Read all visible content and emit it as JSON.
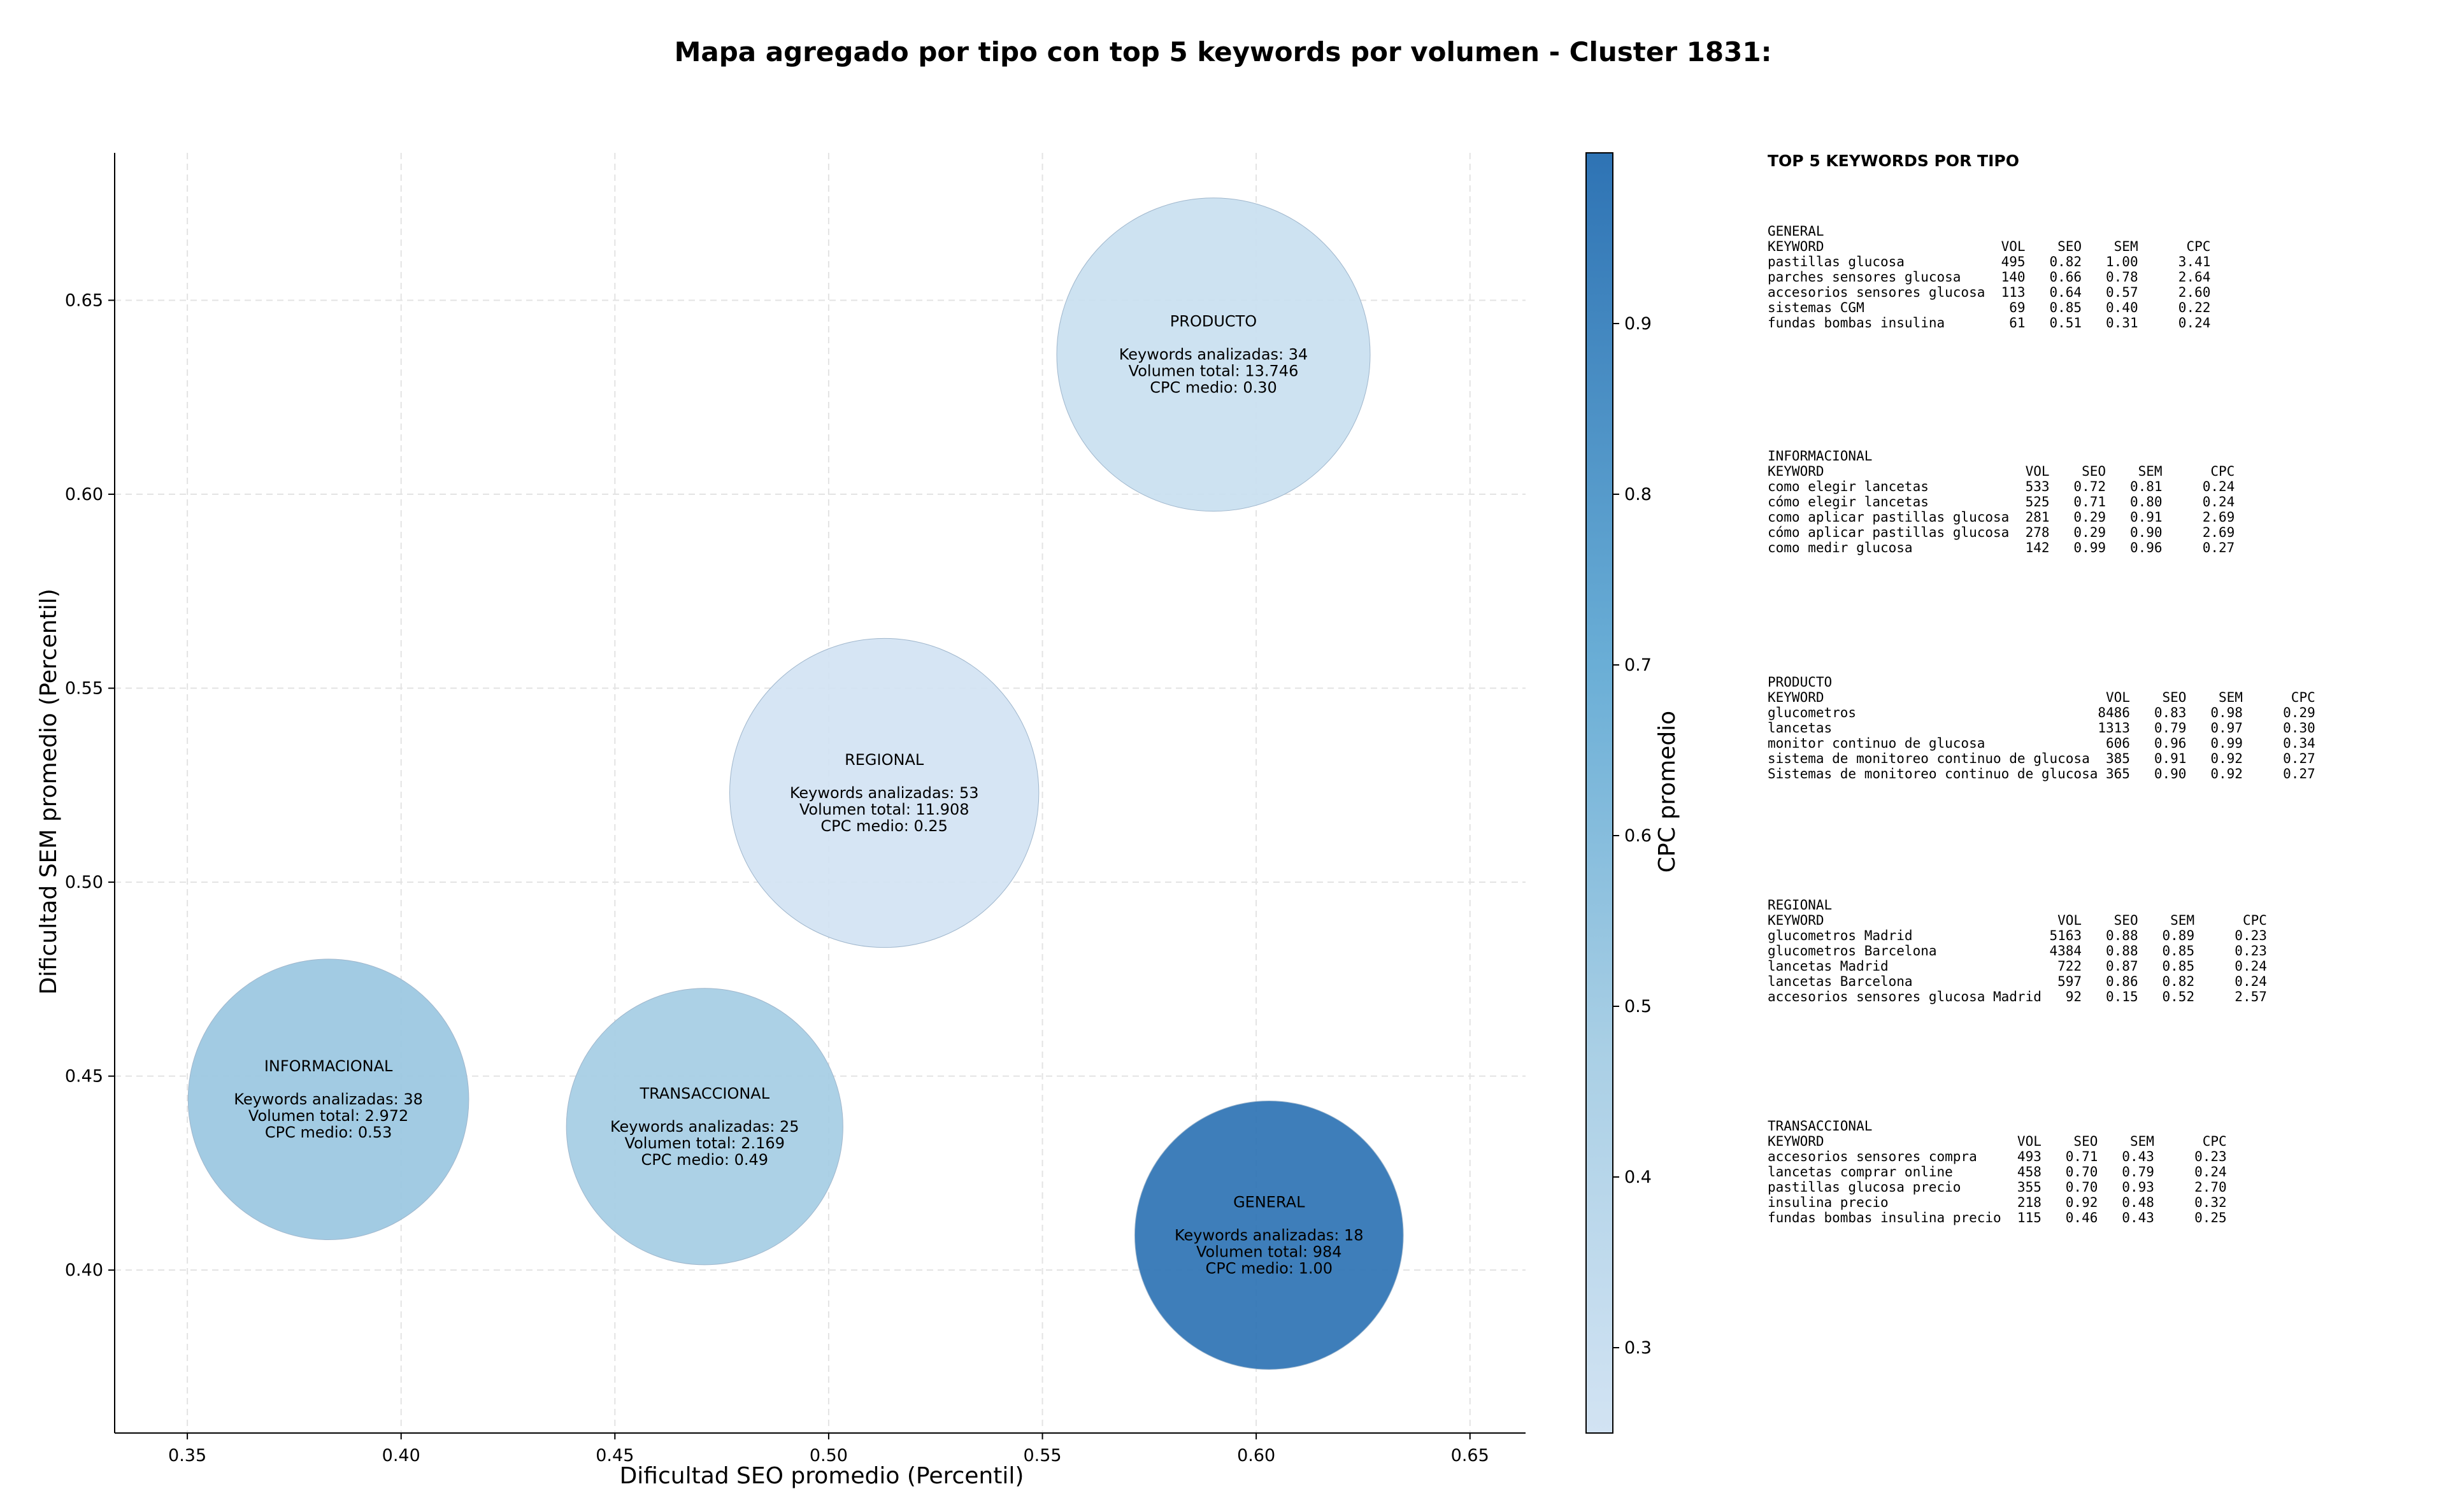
{
  "chart_data": {
    "type": "scatter",
    "title": "Mapa agregado por tipo con top 5 keywords por volumen - Cluster 1831:",
    "xlabel": "Dificultad SEO promedio (Percentil)",
    "ylabel": "Dificultad SEM promedio (Percentil)",
    "xlim": [
      0.333,
      0.663
    ],
    "ylim": [
      0.358,
      0.688
    ],
    "xticks": [
      0.35,
      0.4,
      0.45,
      0.5,
      0.55,
      0.6,
      0.65
    ],
    "yticks": [
      0.4,
      0.45,
      0.5,
      0.55,
      0.6,
      0.65
    ],
    "grid": true,
    "colorbar": {
      "label": "CPC promedio",
      "min": 0.25,
      "max": 1.0,
      "ticks": [
        0.3,
        0.4,
        0.5,
        0.6,
        0.7,
        0.8,
        0.9
      ]
    },
    "points": [
      {
        "label": "PRODUCTO",
        "x": 0.59,
        "y": 0.636,
        "keywords": 34,
        "volume": 13746,
        "cpc": 0.3,
        "lines": [
          "PRODUCTO",
          "Keywords analizadas: 34",
          "Volumen total: 13.746",
          "CPC medio: 0.30"
        ]
      },
      {
        "label": "REGIONAL",
        "x": 0.513,
        "y": 0.523,
        "keywords": 53,
        "volume": 11908,
        "cpc": 0.25,
        "lines": [
          "REGIONAL",
          "Keywords analizadas: 53",
          "Volumen total: 11.908",
          "CPC medio: 0.25"
        ]
      },
      {
        "label": "INFORMACIONAL",
        "x": 0.383,
        "y": 0.444,
        "keywords": 38,
        "volume": 2972,
        "cpc": 0.53,
        "lines": [
          "INFORMACIONAL",
          "Keywords analizadas: 38",
          "Volumen total: 2.972",
          "CPC medio: 0.53"
        ]
      },
      {
        "label": "TRANSACCIONAL",
        "x": 0.471,
        "y": 0.437,
        "keywords": 25,
        "volume": 2169,
        "cpc": 0.49,
        "lines": [
          "TRANSACCIONAL",
          "Keywords analizadas: 25",
          "Volumen total: 2.169",
          "CPC medio: 0.49"
        ]
      },
      {
        "label": "GENERAL",
        "x": 0.603,
        "y": 0.409,
        "keywords": 18,
        "volume": 984,
        "cpc": 1.0,
        "lines": [
          "GENERAL",
          "Keywords analizadas: 18",
          "Volumen total: 984",
          "CPC medio: 1.00"
        ]
      }
    ],
    "table_title": "TOP 5 KEYWORDS POR TIPO",
    "tables": [
      {
        "lines": [
          "GENERAL",
          "KEYWORD                      VOL    SEO    SEM      CPC",
          "pastillas glucosa            495   0.82   1.00     3.41",
          "parches sensores glucosa     140   0.66   0.78     2.64",
          "accesorios sensores glucosa  113   0.64   0.57     2.60",
          "sistemas CGM                  69   0.85   0.40     0.22",
          "fundas bombas insulina        61   0.51   0.31     0.24"
        ]
      },
      {
        "lines": [
          "INFORMACIONAL",
          "KEYWORD                         VOL    SEO    SEM      CPC",
          "como elegir lancetas            533   0.72   0.81     0.24",
          "cómo elegir lancetas            525   0.71   0.80     0.24",
          "como aplicar pastillas glucosa  281   0.29   0.91     2.69",
          "cómo aplicar pastillas glucosa  278   0.29   0.90     2.69",
          "como medir glucosa              142   0.99   0.96     0.27"
        ]
      },
      {
        "lines": [
          "PRODUCTO",
          "KEYWORD                                   VOL    SEO    SEM      CPC",
          "glucometros                              8486   0.83   0.98     0.29",
          "lancetas                                 1313   0.79   0.97     0.30",
          "monitor continuo de glucosa               606   0.96   0.99     0.34",
          "sistema de monitoreo continuo de glucosa  385   0.91   0.92     0.27",
          "Sistemas de monitoreo continuo de glucosa 365   0.90   0.92     0.27"
        ]
      },
      {
        "lines": [
          "REGIONAL",
          "KEYWORD                             VOL    SEO    SEM      CPC",
          "glucometros Madrid                 5163   0.88   0.89     0.23",
          "glucometros Barcelona              4384   0.88   0.85     0.23",
          "lancetas Madrid                     722   0.87   0.85     0.24",
          "lancetas Barcelona                  597   0.86   0.82     0.24",
          "accesorios sensores glucosa Madrid   92   0.15   0.52     2.57"
        ]
      },
      {
        "lines": [
          "TRANSACCIONAL",
          "KEYWORD                        VOL    SEO    SEM      CPC",
          "accesorios sensores compra     493   0.71   0.43     0.23",
          "lancetas comprar online        458   0.70   0.79     0.24",
          "pastillas glucosa precio       355   0.70   0.93     2.70",
          "insulina precio                218   0.92   0.48     0.32",
          "fundas bombas insulina precio  115   0.46   0.43     0.25"
        ]
      }
    ]
  }
}
